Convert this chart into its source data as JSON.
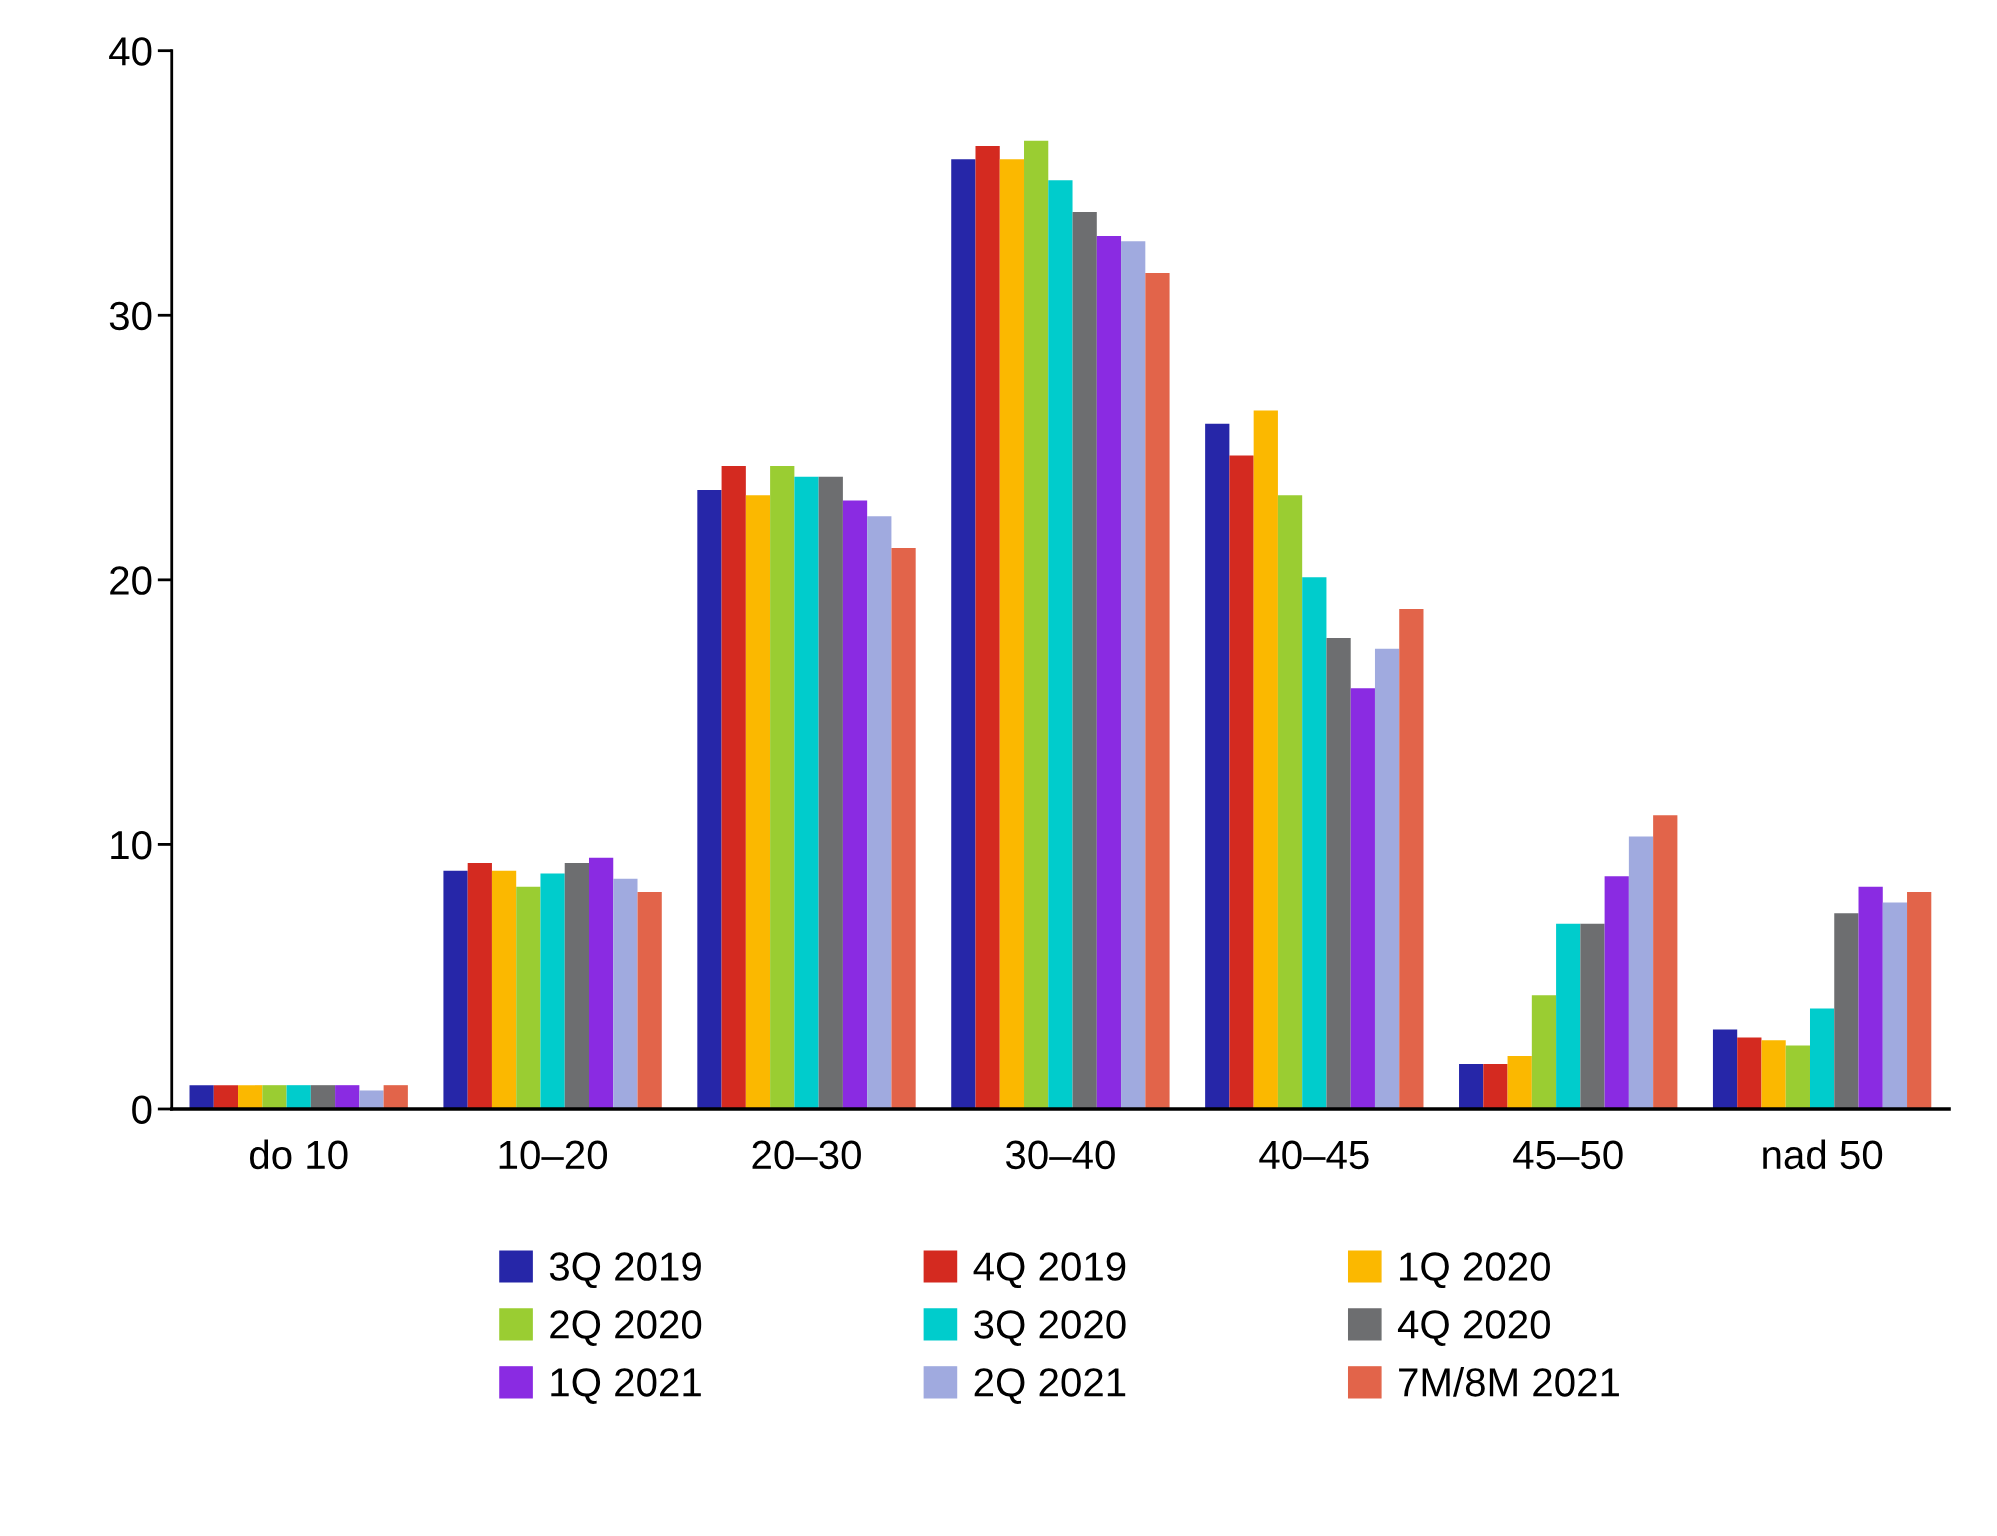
{
  "chart_data": {
    "type": "bar",
    "categories": [
      "do 10",
      "10–20",
      "20–30",
      "30–40",
      "40–45",
      "45–50",
      "nad 50"
    ],
    "ylim": [
      0,
      40
    ],
    "yticks": [
      0,
      10,
      20,
      30,
      40
    ],
    "grid": false,
    "legend": "bottom",
    "series": [
      {
        "name": "3Q 2019",
        "color": "#2626a8",
        "values": [
          0.9,
          9.0,
          23.4,
          35.9,
          25.9,
          1.7,
          3.0
        ]
      },
      {
        "name": "4Q 2019",
        "color": "#d42a20",
        "values": [
          0.9,
          9.3,
          24.3,
          36.4,
          24.7,
          1.7,
          2.7
        ]
      },
      {
        "name": "1Q 2020",
        "color": "#fbb800",
        "values": [
          0.9,
          9.0,
          23.2,
          35.9,
          26.4,
          2.0,
          2.6
        ]
      },
      {
        "name": "2Q 2020",
        "color": "#9acd32",
        "values": [
          0.9,
          8.4,
          24.3,
          36.6,
          23.2,
          4.3,
          2.4
        ]
      },
      {
        "name": "3Q 2020",
        "color": "#00cccc",
        "values": [
          0.9,
          8.9,
          23.9,
          35.1,
          20.1,
          7.0,
          3.8
        ]
      },
      {
        "name": "4Q 2020",
        "color": "#6d6e70",
        "values": [
          0.9,
          9.3,
          23.9,
          33.9,
          17.8,
          7.0,
          7.4
        ]
      },
      {
        "name": "1Q 2021",
        "color": "#8a2be2",
        "values": [
          0.9,
          9.5,
          23.0,
          33.0,
          15.9,
          8.8,
          8.4
        ]
      },
      {
        "name": "2Q 2021",
        "color": "#a0aadf",
        "values": [
          0.7,
          8.7,
          22.4,
          32.8,
          17.4,
          10.3,
          7.8
        ]
      },
      {
        "name": "7M/8M 2021",
        "color": "#e2644a",
        "values": [
          0.9,
          8.2,
          21.2,
          31.6,
          18.9,
          11.1,
          8.2
        ]
      }
    ]
  }
}
